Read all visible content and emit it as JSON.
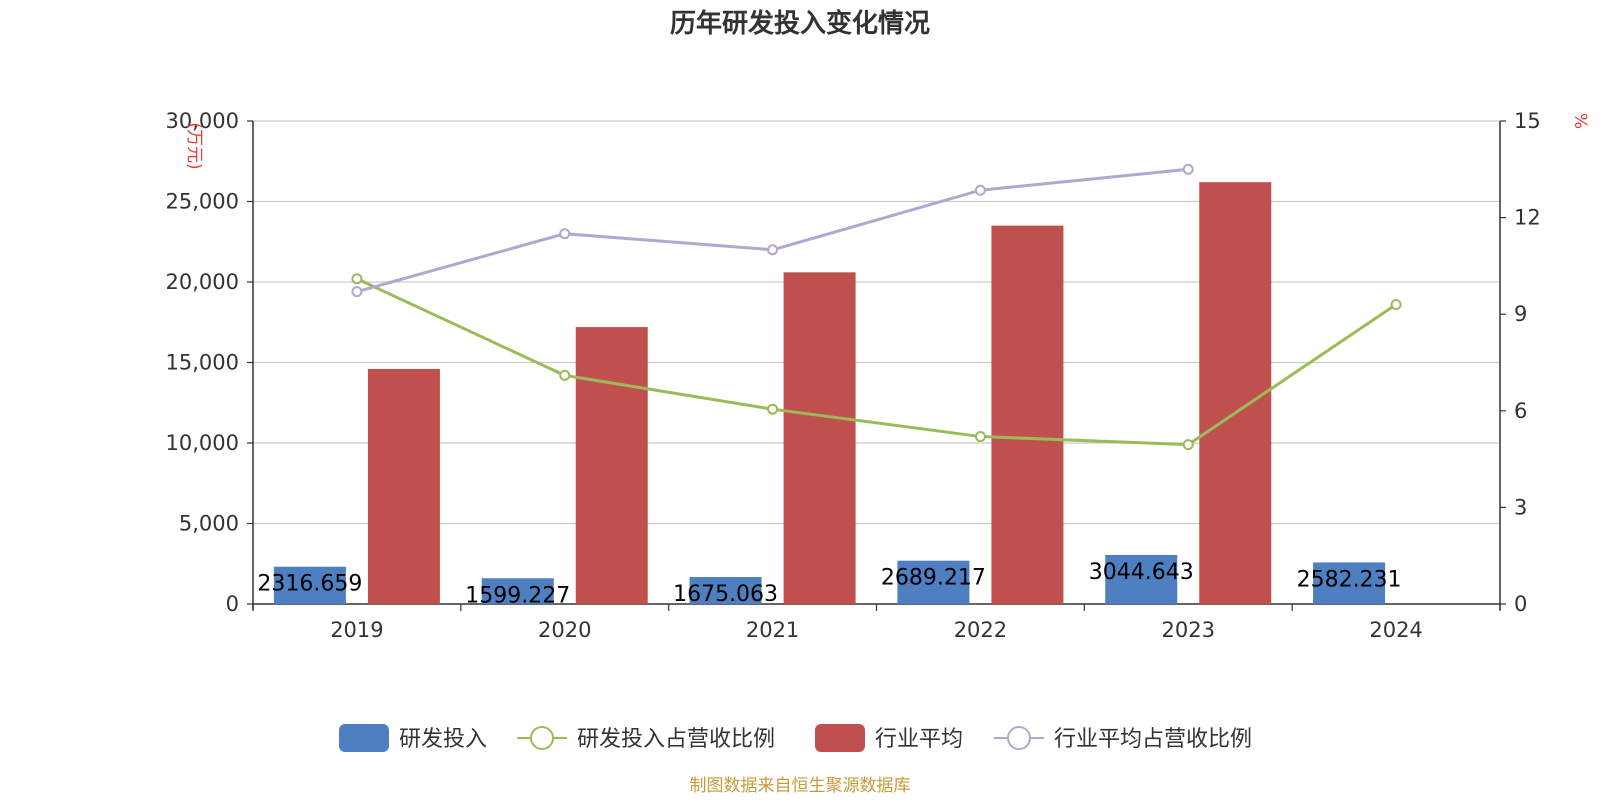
{
  "chart_data": {
    "type": "bar",
    "title": "历年研发投入变化情况",
    "left_unit": "(万元)",
    "right_unit": "%",
    "categories": [
      "2019",
      "2020",
      "2021",
      "2022",
      "2023",
      "2024"
    ],
    "y_left": {
      "min": 0,
      "max": 30000,
      "ticks": [
        "0",
        "5,000",
        "10,000",
        "15,000",
        "20,000",
        "25,000",
        "30,000"
      ]
    },
    "y_right": {
      "min": 0,
      "max": 15,
      "ticks": [
        "0",
        "3",
        "6",
        "9",
        "12",
        "15"
      ]
    },
    "series": [
      {
        "name": "研发投入",
        "type": "bar",
        "axis": "left",
        "color": "#4e7fc1",
        "values": [
          2316.659,
          1599.227,
          1675.063,
          2689.217,
          3044.643,
          2582.231
        ],
        "labels": [
          "2316.659",
          "1599.227",
          "1675.063",
          "2689.217",
          "3044.643",
          "2582.231"
        ]
      },
      {
        "name": "研发投入占营收比例",
        "type": "line",
        "axis": "right",
        "color": "#9bbb59",
        "values": [
          10.1,
          7.1,
          6.05,
          5.2,
          4.95,
          9.3
        ]
      },
      {
        "name": "行业平均",
        "type": "bar",
        "axis": "left",
        "color": "#c0504d",
        "values": [
          14600,
          17200,
          20600,
          23500,
          26200,
          null
        ]
      },
      {
        "name": "行业平均占营收比例",
        "type": "line",
        "axis": "right",
        "color": "#b3a6cf",
        "values": [
          9.7,
          11.5,
          11.0,
          12.85,
          13.5,
          null
        ]
      }
    ],
    "grid": true,
    "legend_position": "bottom"
  },
  "footer": {
    "source": "制图数据来自恒生聚源数据库"
  }
}
